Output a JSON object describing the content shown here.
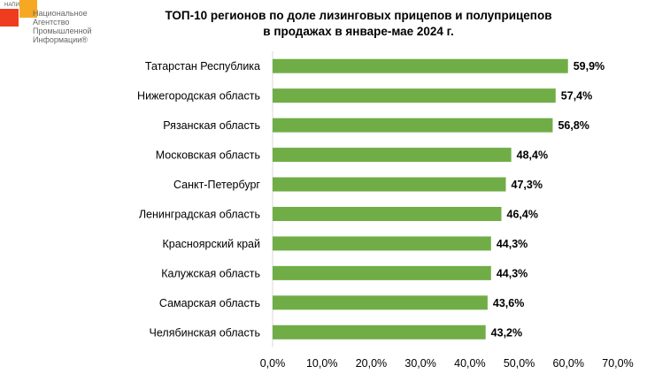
{
  "logo": {
    "abbr": "НАПИ",
    "name_lines": [
      "Национальное",
      "Агентство",
      "Промышленной",
      "Информации®"
    ]
  },
  "chart_data": {
    "type": "bar",
    "orientation": "horizontal",
    "title_lines": [
      "ТОП-10 регионов по доле лизинговых прицепов и полуприцепов",
      "в продажах в январе-мае 2024 г."
    ],
    "categories": [
      "Татарстан Республика",
      "Нижегородская область",
      "Рязанская область",
      "Московская область",
      "Санкт-Петербург",
      "Ленинградская область",
      "Красноярский край",
      "Калужская область",
      "Самарская область",
      "Челябинская область"
    ],
    "values": [
      59.9,
      57.4,
      56.8,
      48.4,
      47.3,
      46.4,
      44.3,
      44.3,
      43.6,
      43.2
    ],
    "data_labels": [
      "59,9%",
      "57,4%",
      "56,8%",
      "48,4%",
      "47,3%",
      "46,4%",
      "44,3%",
      "44,3%",
      "43,6%",
      "43,2%"
    ],
    "xlim": [
      0,
      70
    ],
    "x_ticks": [
      0,
      10,
      20,
      30,
      40,
      50,
      60,
      70
    ],
    "x_tick_labels": [
      "0,0%",
      "10,0%",
      "20,0%",
      "30,0%",
      "40,0%",
      "50,0%",
      "60,0%",
      "70,0%"
    ],
    "bar_color": "#70ad47",
    "grid": false,
    "legend": "none",
    "xlabel": "",
    "ylabel": ""
  }
}
